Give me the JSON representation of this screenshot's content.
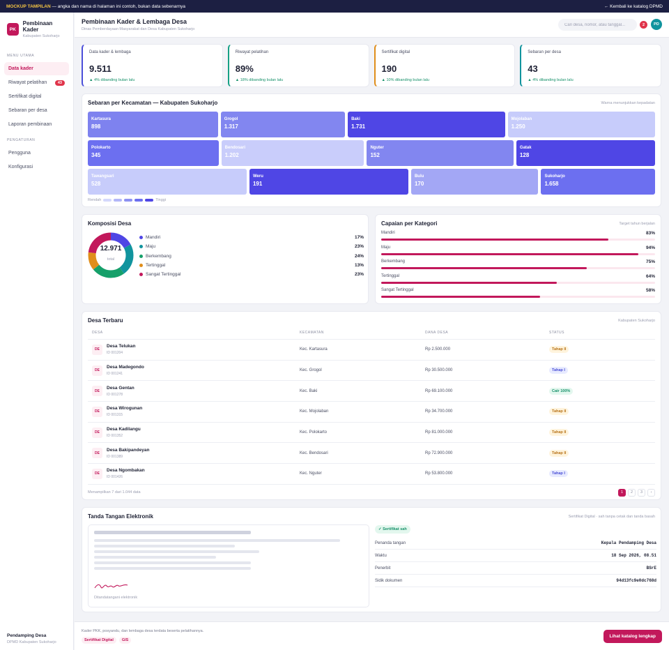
{
  "banner": {
    "tag": "MOCKUP TAMPILAN",
    "text": " — angka dan nama di halaman ini contoh, bukan data sebenarnya",
    "back": "← Kembali ke katalog DPMD"
  },
  "sidebar": {
    "logo": "PK",
    "title": "Pembinaan Kader",
    "subtitle": "Kabupaten Sukoharjo",
    "section1": "MENU UTAMA",
    "items": [
      {
        "label": "Data kader",
        "active": true
      },
      {
        "label": "Riwayat pelatihan",
        "badge": "43"
      },
      {
        "label": "Sertifikat digital"
      },
      {
        "label": "Sebaran per desa"
      },
      {
        "label": "Laporan pembinaan"
      }
    ],
    "section2": "PENGATURAN",
    "items2": [
      {
        "label": "Pengguna"
      },
      {
        "label": "Konfigurasi"
      }
    ],
    "footer_name": "Pendamping Desa",
    "footer_role": "DPMD Kabupaten Sukoharjo"
  },
  "header": {
    "title": "Pembinaan Kader & Lembaga Desa",
    "subtitle": "Dinas Pemberdayaan Masyarakat dan Desa Kabupaten Sukoharjo",
    "search_placeholder": "Cari desa, nomor, atau tanggal...",
    "notif": "2",
    "avatar": "PD"
  },
  "stats": [
    {
      "label": "Data kader & lembaga",
      "value": "9.511",
      "delta": "▲ 4% dibanding bulan lalu",
      "color": "#4b4fd9"
    },
    {
      "label": "Riwayat pelatihan",
      "value": "89%",
      "delta": "▲ 18% dibanding bulan lalu",
      "color": "#16a085"
    },
    {
      "label": "Sertifikat digital",
      "value": "190",
      "delta": "▲ 10% dibanding bulan lalu",
      "color": "#e08e1b"
    },
    {
      "label": "Sebaran per desa",
      "value": "43",
      "delta": "▲ 4% dibanding bulan lalu",
      "color": "#11949e"
    }
  ],
  "treemap": {
    "title": "Sebaran per Kecamatan — Kabupaten Sukoharjo",
    "note": "Warna menunjukkan kepadatan",
    "rows": [
      [
        {
          "name": "Kartasura",
          "value": "898",
          "color": "#7e82ef",
          "flex": 187
        },
        {
          "name": "Grogol",
          "value": "1.317",
          "color": "#8286f0",
          "flex": 178
        },
        {
          "name": "Baki",
          "value": "1.731",
          "color": "#4f46e5",
          "flex": 228
        },
        {
          "name": "Mojolaban",
          "value": "1.250",
          "color": "#c7ccfb",
          "flex": 213
        }
      ],
      [
        {
          "name": "Polokarto",
          "value": "345",
          "color": "#6c6ff0",
          "flex": 187
        },
        {
          "name": "Bendosari",
          "value": "1.202",
          "color": "#c9cdfb",
          "flex": 205
        },
        {
          "name": "Nguter",
          "value": "152",
          "color": "#8286f0",
          "flex": 211
        },
        {
          "name": "Gatak",
          "value": "128",
          "color": "#4f46e5",
          "flex": 199
        }
      ],
      [
        {
          "name": "Tawangsari",
          "value": "528",
          "color": "#c7ccfb",
          "flex": 230
        },
        {
          "name": "Weru",
          "value": "191",
          "color": "#4f46e5",
          "flex": 230
        },
        {
          "name": "Bulu",
          "value": "170",
          "color": "#a3a7f5",
          "flex": 182
        },
        {
          "name": "Sukoharjo",
          "value": "1.658",
          "color": "#6c6ff0",
          "flex": 162
        }
      ]
    ],
    "legend_low": "Rendah",
    "legend_high": "Tinggi",
    "legend_colors": [
      "#d4d8fc",
      "#b3b7f8",
      "#8d91f2",
      "#6c6ff0",
      "#4f46e5"
    ]
  },
  "komposisi": {
    "title": "Komposisi Desa",
    "total": "12.971",
    "total_label": "total",
    "items": [
      {
        "name": "Mandiri",
        "pct": "17%",
        "value": 17,
        "color": "#4f46e5"
      },
      {
        "name": "Maju",
        "pct": "23%",
        "value": 23,
        "color": "#11949e"
      },
      {
        "name": "Berkembang",
        "pct": "24%",
        "value": 24,
        "color": "#16a06a"
      },
      {
        "name": "Tertinggal",
        "pct": "13%",
        "value": 13,
        "color": "#e08e1b"
      },
      {
        "name": "Sangat Tertinggal",
        "pct": "23%",
        "value": 23,
        "color": "#c2185b"
      }
    ]
  },
  "capaian": {
    "title": "Capaian per Kategori",
    "note": "Target tahun berjalan",
    "items": [
      {
        "name": "Mandiri",
        "pct": "83%",
        "value": 0.83
      },
      {
        "name": "Maju",
        "pct": "94%",
        "value": 0.94
      },
      {
        "name": "Berkembang",
        "pct": "75%",
        "value": 0.75
      },
      {
        "name": "Tertinggal",
        "pct": "64%",
        "value": 0.64
      },
      {
        "name": "Sangat Tertinggal",
        "pct": "58%",
        "value": 0.58
      }
    ]
  },
  "desa": {
    "title": "Desa Terbaru",
    "note": "Kabupaten Sukoharjo",
    "columns": [
      "DESA",
      "KECAMATAN",
      "DANA DESA",
      "STATUS"
    ],
    "rows": [
      {
        "ab": "DE",
        "name": "Desa Telukan",
        "id": "ID 001204",
        "kec": "Kec. Kartasura",
        "dana": "Rp 2.500.000",
        "status": "Tahap II",
        "st": "yel"
      },
      {
        "ab": "DE",
        "name": "Desa Madegondo",
        "id": "ID 001241",
        "kec": "Kec. Grogol",
        "dana": "Rp 30.500.000",
        "status": "Tahap I",
        "st": "blue"
      },
      {
        "ab": "DE",
        "name": "Desa Gentan",
        "id": "ID 001278",
        "kec": "Kec. Baki",
        "dana": "Rp 69.100.000",
        "status": "Cair 100%",
        "st": "green"
      },
      {
        "ab": "DE",
        "name": "Desa Wirogunan",
        "id": "ID 001315",
        "kec": "Kec. Mojolaban",
        "dana": "Rp 34.700.000",
        "status": "Tahap II",
        "st": "yel"
      },
      {
        "ab": "DE",
        "name": "Desa Kadilangu",
        "id": "ID 001352",
        "kec": "Kec. Polokarto",
        "dana": "Rp 81.000.000",
        "status": "Tahap II",
        "st": "yel"
      },
      {
        "ab": "DE",
        "name": "Desa Bakipandeyan",
        "id": "ID 001389",
        "kec": "Kec. Bendosari",
        "dana": "Rp 72.900.000",
        "status": "Tahap II",
        "st": "yel"
      },
      {
        "ab": "DE",
        "name": "Desa Ngombakan",
        "id": "ID 001426",
        "kec": "Kec. Nguter",
        "dana": "Rp 53.800.000",
        "status": "Tahap I",
        "st": "blue"
      }
    ],
    "showing": "Menampilkan 7 dari 1.044 data",
    "pages": [
      "1",
      "2",
      "3",
      "›"
    ]
  },
  "tte": {
    "title": "Tanda Tangan Elektronik",
    "note": "Sertifikat Digital · sah tanpa cetak dan tanda basah",
    "sig_label": "Ditandatangani elektronik",
    "verified": "✓ Sertifikat sah",
    "rows": [
      {
        "k": "Penanda tangan",
        "v": "Kepala Pendamping Desa"
      },
      {
        "k": "Waktu",
        "v": "18 Sep 2026, 08.51"
      },
      {
        "k": "Penerbit",
        "v": "BSrE"
      },
      {
        "k": "Sidik dokumen",
        "v": "94d13fc9e0dc768d"
      }
    ]
  },
  "footer": {
    "text": "Kader PKK, posyandu, dan lembaga desa terdata beserta pelatihannya.",
    "tags": [
      "Sertifikat Digital",
      "GIS"
    ],
    "button": "Lihat katalog lengkap"
  }
}
